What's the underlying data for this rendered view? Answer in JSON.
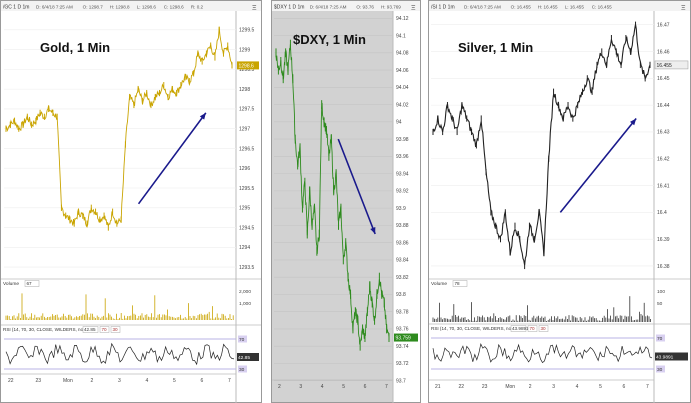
{
  "colors": {
    "gold": "#c9a400",
    "dxy": "#2e8b1e",
    "silver": "#222222",
    "arrow": "#1a1a8c",
    "rsi_band": "#b9b3e6",
    "rsi_line": "#222222",
    "dxy_bg": "#d2d2d2"
  },
  "chart_data": [
    {
      "type": "line",
      "id": "gold",
      "title": "Gold, 1 Min",
      "header": "/GC 1 D 1m",
      "header_info": [
        "D: 6/4/18 7:25 AM",
        "O: 1298.7",
        "H: 1298.8",
        "L: 1298.6",
        "C: 1298.6",
        "R: 0.2"
      ],
      "y_ticks": [
        "1299.5",
        "1299",
        "1298.5",
        "1298",
        "1297.5",
        "1297",
        "1296.5",
        "1296",
        "1295.5",
        "1295",
        "1294.5",
        "1294",
        "1293.5"
      ],
      "ylim": [
        1293.3,
        1299.9
      ],
      "price_tag": "1298.6",
      "x_ticks": [
        "22",
        "23",
        "Mon",
        "2",
        "3",
        "4",
        "5",
        "6",
        "7"
      ],
      "series": [
        {
          "values": [
            1297.0,
            1297.1,
            1297.2,
            1297.0,
            1297.1,
            1297.3,
            1297.1,
            1297.2,
            1297.4,
            1297.3,
            1297.5,
            1297.4,
            1297.3,
            1295.0,
            1294.8,
            1294.7,
            1294.6,
            1294.9,
            1294.8,
            1294.6,
            1295.0,
            1294.9,
            1294.7,
            1294.8,
            1294.5,
            1294.9,
            1294.6,
            1294.7,
            1296.6,
            1297.8,
            1297.6,
            1298.0,
            1297.7,
            1297.9,
            1297.6,
            1297.8,
            1297.9,
            1298.1,
            1297.8,
            1298.0,
            1297.9,
            1298.1,
            1298.3,
            1298.2,
            1298.4,
            1298.9,
            1298.7,
            1298.9,
            1299.1,
            1298.8,
            1299.5,
            1298.9,
            1299.1,
            1298.6
          ]
        }
      ],
      "arrow": {
        "from": [
          0.58,
          1295.1
        ],
        "to": [
          0.87,
          1297.4
        ]
      },
      "volume": {
        "label": "Volume",
        "value": "67",
        "ticks": [
          "2,000",
          "1,000"
        ]
      },
      "rsi": {
        "label": "RSI (14, 70, 30, CLOSE, WILDERS, no)",
        "value": "42.85",
        "levels": [
          "70",
          "30"
        ],
        "tag": "42.85",
        "ticks": [
          "70",
          "30"
        ]
      }
    },
    {
      "type": "line",
      "id": "dxy",
      "title": "$DXY, 1 Min",
      "header": "$DXY 1 D 1m",
      "header_info": [
        "D: 6/4/18 7:25 AM",
        "O: 93.76",
        "H: 93.769"
      ],
      "y_ticks": [
        "94.12",
        "94.1",
        "94.08",
        "94.06",
        "94.04",
        "94.02",
        "94",
        "93.98",
        "93.96",
        "93.94",
        "93.92",
        "93.9",
        "93.88",
        "93.86",
        "93.84",
        "93.82",
        "93.8",
        "93.78",
        "93.76",
        "93.74",
        "93.72",
        "93.7"
      ],
      "ylim": [
        93.695,
        94.125
      ],
      "price_tag": "93.759",
      "x_ticks": [
        "2",
        "3",
        "4",
        "5",
        "6",
        "7"
      ],
      "series": [
        {
          "values": [
            94.08,
            94.06,
            94.07,
            94.05,
            94.08,
            94.06,
            94.09,
            94.05,
            93.98,
            93.95,
            93.97,
            93.9,
            93.93,
            93.87,
            93.92,
            93.88,
            93.9,
            93.85,
            93.87,
            94.02,
            94.0,
            93.99,
            93.96,
            93.98,
            93.92,
            93.94,
            93.88,
            93.9,
            93.84,
            93.86,
            93.82,
            93.8,
            93.76,
            93.78,
            93.77,
            93.74,
            93.76,
            93.75,
            93.78,
            93.81,
            93.79,
            93.77,
            93.8,
            93.82,
            93.8,
            93.79,
            93.76,
            93.75
          ]
        }
      ],
      "arrow": {
        "from": [
          0.54,
          93.98
        ],
        "to": [
          0.85,
          93.87
        ]
      }
    },
    {
      "type": "line",
      "id": "silver",
      "title": "Silver, 1 Min",
      "header": "/SI 1 D 1m",
      "header_info": [
        "D: 6/4/18 7:25 AM",
        "O: 16.455",
        "H: 16.455",
        "L: 16.455",
        "C: 16.455"
      ],
      "y_ticks": [
        "16.47",
        "16.46",
        "16.45",
        "16.44",
        "16.43",
        "16.42",
        "16.41",
        "16.4",
        "16.39",
        "16.38"
      ],
      "ylim": [
        16.377,
        16.474
      ],
      "price_tag": "16.455",
      "x_ticks": [
        "21",
        "22",
        "23",
        "Mon",
        "2",
        "3",
        "4",
        "5",
        "6",
        "7"
      ],
      "series": [
        {
          "values": [
            16.43,
            16.435,
            16.43,
            16.44,
            16.435,
            16.43,
            16.44,
            16.435,
            16.43,
            16.425,
            16.435,
            16.415,
            16.4,
            16.395,
            16.39,
            16.4,
            16.385,
            16.395,
            16.39,
            16.38,
            16.395,
            16.39,
            16.4,
            16.385,
            16.42,
            16.445,
            16.44,
            16.435,
            16.44,
            16.435,
            16.44,
            16.445,
            16.45,
            16.445,
            16.455,
            16.46,
            16.455,
            16.465,
            16.46,
            16.455,
            16.465,
            16.46,
            16.47,
            16.455,
            16.45,
            16.455
          ]
        }
      ],
      "arrow": {
        "from": [
          0.58,
          16.4
        ],
        "to": [
          0.92,
          16.435
        ]
      },
      "volume": {
        "label": "Volume",
        "value": "78",
        "ticks": [
          "100",
          "50"
        ]
      },
      "rsi": {
        "label": "RSI (14, 70, 30, CLOSE, WILDERS, no)",
        "value": "43.9891",
        "levels": [
          "70",
          "30"
        ],
        "tag": "43.9891",
        "ticks": [
          "70",
          "30"
        ]
      }
    }
  ]
}
